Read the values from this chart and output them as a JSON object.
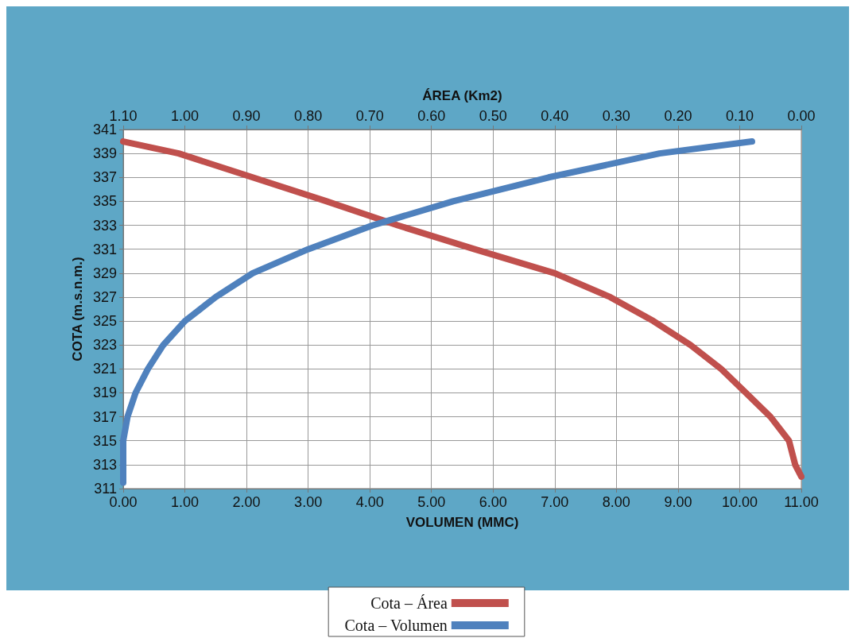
{
  "chart_data": {
    "type": "line",
    "xlabel": "VOLUMEN (MMC)",
    "x2label": "ÁREA (Km2)",
    "ylabel": "COTA (m.s.n.m.)",
    "xlim": [
      0,
      11
    ],
    "xticks": [
      {
        "value": 0,
        "label": "0.00"
      },
      {
        "value": 1,
        "label": "1.00"
      },
      {
        "value": 2,
        "label": "2.00"
      },
      {
        "value": 3,
        "label": "3.00"
      },
      {
        "value": 4,
        "label": "4.00"
      },
      {
        "value": 5,
        "label": "5.00"
      },
      {
        "value": 6,
        "label": "6.00"
      },
      {
        "value": 7,
        "label": "7.00"
      },
      {
        "value": 8,
        "label": "8.00"
      },
      {
        "value": 9,
        "label": "9.00"
      },
      {
        "value": 10,
        "label": "10.00"
      },
      {
        "value": 11,
        "label": "11.00"
      }
    ],
    "x2lim": [
      1.1,
      0
    ],
    "x2ticks": [
      {
        "value": 1.1,
        "label": "1.10"
      },
      {
        "value": 1.0,
        "label": "1.00"
      },
      {
        "value": 0.9,
        "label": "0.90"
      },
      {
        "value": 0.8,
        "label": "0.80"
      },
      {
        "value": 0.7,
        "label": "0.70"
      },
      {
        "value": 0.6,
        "label": "0.60"
      },
      {
        "value": 0.5,
        "label": "0.50"
      },
      {
        "value": 0.4,
        "label": "0.40"
      },
      {
        "value": 0.3,
        "label": "0.30"
      },
      {
        "value": 0.2,
        "label": "0.20"
      },
      {
        "value": 0.1,
        "label": "0.10"
      },
      {
        "value": 0,
        "label": "0.00"
      }
    ],
    "ylim": [
      311,
      341
    ],
    "yticks": [
      311,
      313,
      315,
      317,
      319,
      321,
      323,
      325,
      327,
      329,
      331,
      333,
      335,
      337,
      339,
      341
    ],
    "grid": true,
    "legend": "bottom",
    "line_style": "solid",
    "series": [
      {
        "name": "Cota – Área",
        "color": "#c0504d",
        "axis": "x2",
        "x": [
          1.1,
          1.01,
          0.89,
          0.77,
          0.655,
          0.53,
          0.4,
          0.31,
          0.24,
          0.18,
          0.13,
          0.09,
          0.05,
          0.02,
          0.01,
          0.0
        ],
        "values": [
          340,
          339,
          337,
          335,
          333,
          331,
          329,
          327,
          325,
          323,
          321,
          319,
          317,
          315,
          313,
          312
        ]
      },
      {
        "name": "Cota – Volumen",
        "color": "#4f81bd",
        "x": [
          0,
          0,
          0.07,
          0.2,
          0.4,
          0.65,
          1.0,
          1.5,
          2.1,
          3.0,
          4.05,
          5.35,
          6.9,
          8.7,
          10.2
        ],
        "values": [
          311.5,
          315,
          317,
          319,
          321,
          323,
          325,
          327,
          329,
          331,
          333,
          335,
          337,
          339,
          340
        ]
      }
    ]
  }
}
